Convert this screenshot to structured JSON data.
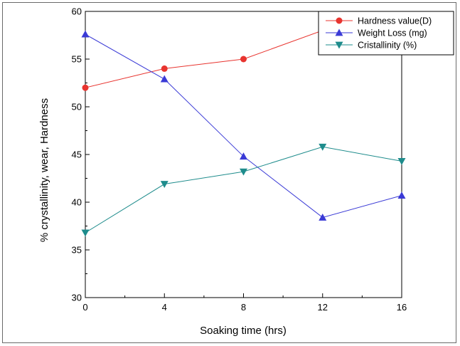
{
  "chart_data": {
    "type": "line",
    "title": "",
    "xlabel": "Soaking time (hrs)",
    "ylabel": "% crystallinity, wear, Hardness",
    "x": [
      0,
      4,
      8,
      12,
      16
    ],
    "xlim": [
      0,
      16
    ],
    "ylim": [
      30,
      60
    ],
    "xticks": [
      0,
      4,
      8,
      12,
      16
    ],
    "yticks": [
      30,
      35,
      40,
      45,
      50,
      55,
      60
    ],
    "grid": false,
    "legend_position": "top-right",
    "series": [
      {
        "name": "Hardness value(D)",
        "values": [
          52,
          54,
          55,
          58,
          56
        ],
        "color": "#e8342f",
        "marker": "circle"
      },
      {
        "name": "Weight Loss (mg)",
        "values": [
          57.6,
          52.9,
          44.8,
          38.4,
          40.7
        ],
        "color": "#3a3ad6",
        "marker": "triangle-up"
      },
      {
        "name": "Cristallinity (%)",
        "values": [
          36.8,
          41.9,
          43.2,
          45.8,
          44.3
        ],
        "color": "#1e8c8c",
        "marker": "triangle-down"
      }
    ]
  }
}
